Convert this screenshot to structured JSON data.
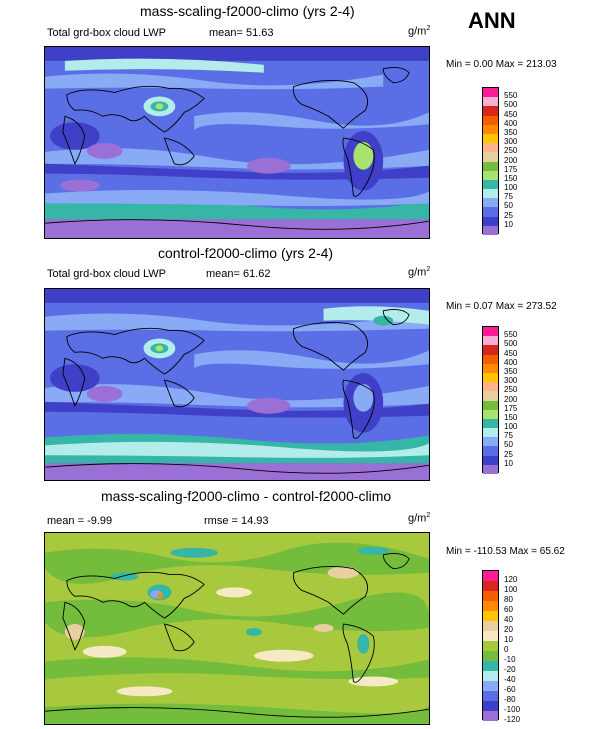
{
  "season": "ANN",
  "colors": {
    "lwp": [
      "#9a6fd6",
      "#3f3fc8",
      "#5a6fe6",
      "#89aaf4",
      "#b4ecec",
      "#36b6a6",
      "#a8e36d",
      "#74bc3b",
      "#e9cfa0",
      "#ffb38a",
      "#ffc400",
      "#ff8a00",
      "#f25e00",
      "#d8261e",
      "#f8aed0",
      "#ff1a96"
    ],
    "diff": [
      "#9a6fd6",
      "#3f3fc8",
      "#5a6fe6",
      "#89aaf4",
      "#b4ecec",
      "#36b6a6",
      "#74bc3b",
      "#a8c83e",
      "#f5e9c6",
      "#e9cfa0",
      "#ffc400",
      "#ff8a00",
      "#f25e00",
      "#d8261e",
      "#ff1a96"
    ]
  },
  "panels": [
    {
      "title": "mass-scaling-f2000-climo (yrs 2-4)",
      "left_label": "Total grd-box cloud LWP",
      "mean_label": "mean=",
      "mean_value": "51.63",
      "units": "g/m",
      "units_sup": "2",
      "min_label": "Min =",
      "min_value": "0.00",
      "max_label": "Max =",
      "max_value": "213.03",
      "legend": [
        "550",
        "500",
        "450",
        "400",
        "350",
        "300",
        "250",
        "200",
        "175",
        "150",
        "100",
        "75",
        "50",
        "25",
        "10"
      ]
    },
    {
      "title": "control-f2000-climo (yrs 2-4)",
      "left_label": "Total grd-box cloud LWP",
      "mean_label": "mean=",
      "mean_value": "61.62",
      "units": "g/m",
      "units_sup": "2",
      "min_label": "Min =",
      "min_value": "0.07",
      "max_label": "Max =",
      "max_value": "273.52",
      "legend": [
        "550",
        "500",
        "450",
        "400",
        "350",
        "300",
        "250",
        "200",
        "175",
        "150",
        "100",
        "75",
        "50",
        "25",
        "10"
      ]
    },
    {
      "title": "mass-scaling-f2000-climo - control-f2000-climo",
      "left_label": "mean =",
      "left_value": "-9.99",
      "mean_label": "rmse =",
      "mean_value": "14.93",
      "units": "g/m",
      "units_sup": "2",
      "min_label": "Min =",
      "min_value": "-110.53",
      "max_label": "Max =",
      "max_value": "65.62",
      "legend": [
        "120",
        "100",
        "80",
        "60",
        "40",
        "20",
        "10",
        "0",
        "-10",
        "-20",
        "-40",
        "-60",
        "-80",
        "-100",
        "-120"
      ]
    }
  ]
}
